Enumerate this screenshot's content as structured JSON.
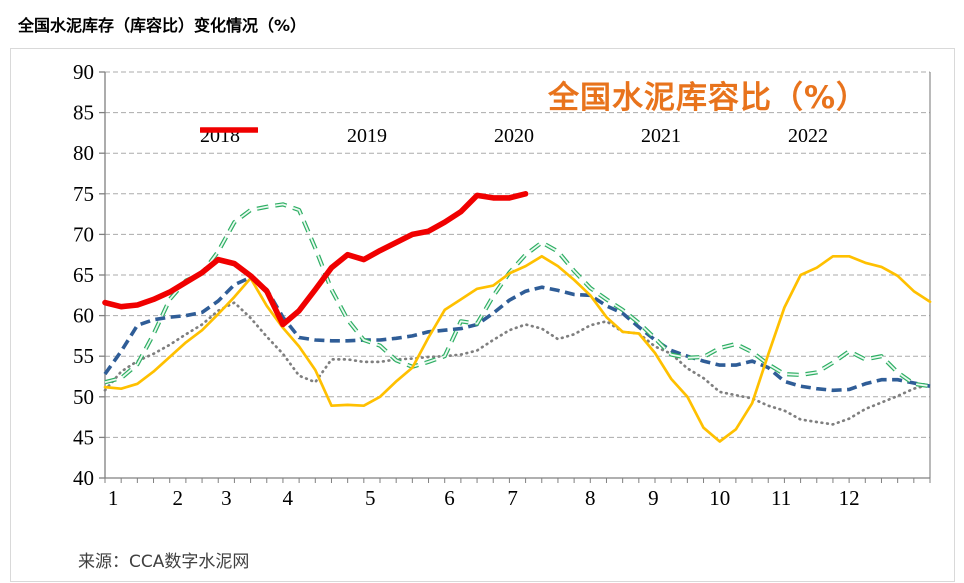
{
  "page": {
    "title": "全国水泥库存（库容比）变化情况（%）",
    "source": "来源：CCA数字水泥网"
  },
  "chart_data": {
    "type": "line",
    "title": "全国水泥库容比（%）",
    "title_color": "#E8731C",
    "x_unit": "week-of-year",
    "xlabel": "",
    "ylabel": "",
    "ylim": [
      40,
      90
    ],
    "ytick_step": 5,
    "grid": "horizontal-dashed",
    "grid_color": "#ABABAB",
    "axis_color": "#808080",
    "legend_position": "top-center-inside",
    "month_labels": [
      "1",
      "2",
      "3",
      "4",
      "5",
      "6",
      "7",
      "8",
      "9",
      "10",
      "11",
      "12"
    ],
    "month_week_positions": [
      1.5,
      5.5,
      8.5,
      12.3,
      17.4,
      22.3,
      26.2,
      31.0,
      34.9,
      39.0,
      42.8,
      47.0
    ],
    "weeks_total": 52,
    "series": [
      {
        "name": "2018",
        "style": "dotted",
        "color": "#7F7F7F",
        "values": [
          50.8,
          53.1,
          54.4,
          55.3,
          56.4,
          57.7,
          58.9,
          60.6,
          61.6,
          59.7,
          57.4,
          55.3,
          52.6,
          51.8,
          54.6,
          54.6,
          54.3,
          54.3,
          54.6,
          54.7,
          54.9,
          55.0,
          55.2,
          55.7,
          57.0,
          58.2,
          58.9,
          58.4,
          57.1,
          57.7,
          58.8,
          59.3,
          58.0,
          57.8,
          56.2,
          55.3,
          53.5,
          52.3,
          50.6,
          50.2,
          49.8,
          48.9,
          48.3,
          47.2,
          46.9,
          46.6,
          47.3,
          48.5,
          49.3,
          50.1,
          51.0,
          51.5
        ]
      },
      {
        "name": "2019",
        "style": "dashed",
        "color": "#2F5D97",
        "values": [
          52.8,
          55.6,
          58.8,
          59.5,
          59.8,
          60.0,
          60.4,
          61.8,
          63.8,
          64.7,
          63.2,
          59.8,
          57.3,
          57.0,
          56.9,
          56.9,
          57.0,
          57.0,
          57.2,
          57.5,
          58.0,
          58.2,
          58.4,
          58.9,
          60.3,
          61.9,
          63.0,
          63.5,
          63.1,
          62.6,
          62.5,
          61.2,
          60.3,
          58.6,
          57.0,
          55.7,
          55.0,
          54.4,
          53.9,
          53.9,
          54.4,
          53.6,
          51.9,
          51.3,
          51.0,
          50.8,
          50.9,
          51.6,
          52.1,
          52.1,
          51.7,
          51.3
        ]
      },
      {
        "name": "2020",
        "style": "dashed-hollow",
        "color": "#2EAE63",
        "inner_color": "#E9F9F0",
        "values": [
          51.8,
          52.3,
          54.0,
          57.7,
          62.0,
          64.3,
          65.2,
          67.9,
          71.5,
          73.0,
          73.4,
          73.7,
          73.0,
          68.3,
          63.2,
          59.5,
          57.0,
          56.3,
          54.5,
          53.7,
          54.3,
          55.0,
          59.3,
          59.0,
          62.4,
          65.3,
          67.5,
          69.0,
          67.9,
          65.5,
          63.4,
          62.0,
          60.7,
          59.1,
          57.2,
          55.2,
          54.8,
          54.9,
          56.0,
          56.5,
          55.5,
          54.0,
          52.8,
          52.7,
          53.0,
          54.2,
          55.6,
          54.6,
          55.0,
          53.0,
          51.6,
          51.3
        ]
      },
      {
        "name": "2021",
        "style": "solid",
        "color": "#FFC000",
        "values": [
          51.2,
          51.0,
          51.6,
          53.1,
          54.9,
          56.7,
          58.2,
          60.2,
          62.3,
          64.6,
          61.2,
          58.5,
          56.2,
          53.3,
          48.9,
          49.0,
          48.9,
          50.0,
          51.9,
          53.6,
          57.3,
          60.7,
          62.0,
          63.3,
          63.7,
          65.2,
          66.1,
          67.3,
          66.1,
          64.4,
          62.5,
          59.8,
          58.0,
          57.8,
          55.4,
          52.2,
          50.0,
          46.2,
          44.5,
          46.0,
          49.2,
          55.2,
          61.0,
          65.0,
          65.9,
          67.3,
          67.3,
          66.5,
          66.0,
          64.9,
          63.0,
          61.7
        ]
      },
      {
        "name": "2022",
        "style": "solid-thick",
        "color": "#F00000",
        "values": [
          61.6,
          61.1,
          61.3,
          62.0,
          62.9,
          64.1,
          65.3,
          66.9,
          66.4,
          64.9,
          63.0,
          58.9,
          60.6,
          63.2,
          65.9,
          67.5,
          66.9,
          68.0,
          69.0,
          70.0,
          70.4,
          71.5,
          72.8,
          74.8,
          74.5,
          74.5,
          75.0
        ]
      }
    ]
  }
}
